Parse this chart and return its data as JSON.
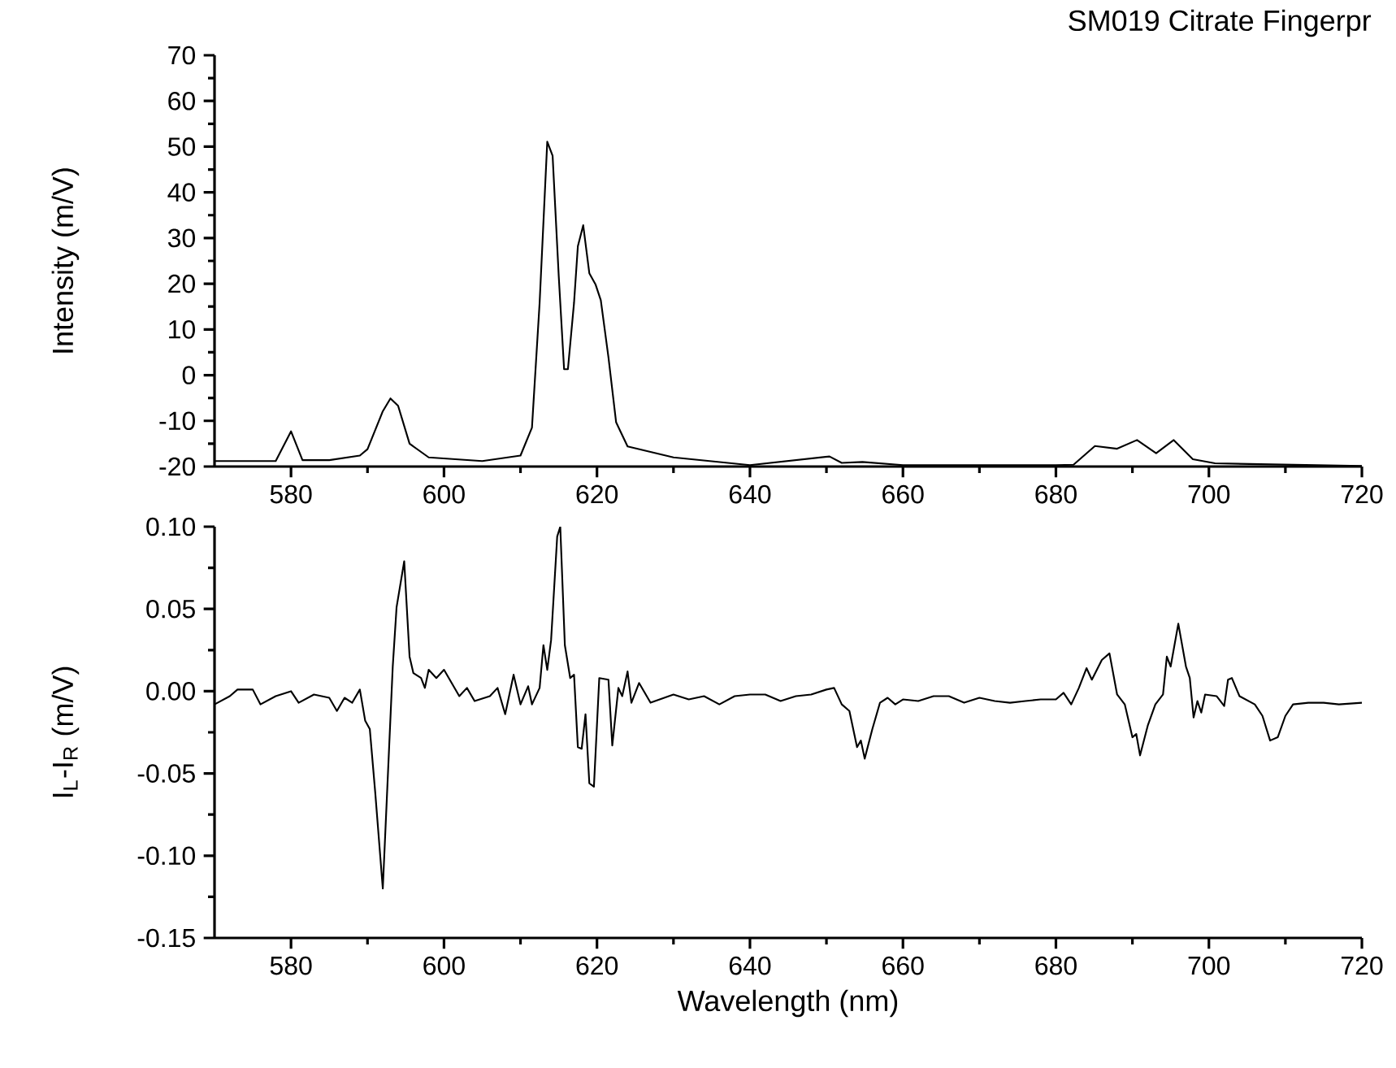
{
  "chart_data": [
    {
      "type": "line",
      "title": "SM019 Citrate Fingerpr",
      "ylabel": "Intensity (m/V)",
      "xlim": [
        570,
        720
      ],
      "xticks": [
        580,
        600,
        620,
        640,
        660,
        680,
        700,
        720
      ],
      "ylim": [
        -20,
        70
      ],
      "yticks": [
        -20,
        -10,
        0,
        10,
        20,
        30,
        40,
        50,
        60,
        70
      ],
      "grid": false,
      "marker": "none",
      "line_style": "solid",
      "series": [
        {
          "color": "#000000",
          "x": [
            570,
            578,
            580,
            581.5,
            585,
            589,
            590,
            592,
            593,
            594,
            595.5,
            598,
            605,
            610,
            611.5,
            612.5,
            613.5,
            614.2,
            615,
            615.7,
            616.2,
            617,
            617.5,
            618.2,
            619,
            619.8,
            620.5,
            621.5,
            622.5,
            624,
            630,
            640,
            650.4,
            652,
            654.7,
            660,
            680,
            682.3,
            685.1,
            688,
            690.6,
            693.1,
            695.4,
            697.9,
            700.8,
            720
          ],
          "values": [
            -18.8,
            -18.8,
            -12.3,
            -18.6,
            -18.6,
            -17.6,
            -16.2,
            -7.9,
            -5.1,
            -6.7,
            -15,
            -18,
            -18.8,
            -17.6,
            -11.5,
            15.8,
            51.1,
            48,
            21.7,
            1.3,
            1.3,
            15.8,
            28.2,
            32.8,
            22.3,
            19.9,
            16.4,
            3.9,
            -10.3,
            -15.6,
            -18,
            -19.7,
            -17.8,
            -19.2,
            -19,
            -19.7,
            -19.7,
            -19.6,
            -15.5,
            -16.1,
            -14.2,
            -17.1,
            -14.2,
            -18.4,
            -19.3,
            -19.9
          ]
        }
      ]
    },
    {
      "type": "line",
      "xlabel": "Wavelength (nm)",
      "ylabel": "I$_{L}$-I$_{R}$ (m/V)",
      "xlim": [
        570,
        720
      ],
      "xticks": [
        580,
        600,
        620,
        640,
        660,
        680,
        700,
        720
      ],
      "ylim": [
        -0.15,
        0.1
      ],
      "yticks": [
        {
          "value": -0.15,
          "label": "-0.15"
        },
        {
          "value": -0.1,
          "label": "-0.10"
        },
        {
          "value": -0.05,
          "label": "-0.05"
        },
        {
          "value": 0,
          "label": "0.00"
        },
        {
          "value": 0.05,
          "label": "0.05"
        },
        {
          "value": 0.1,
          "label": "0.10"
        }
      ],
      "grid": false,
      "marker": "none",
      "line_style": "solid",
      "series": [
        {
          "color": "#000000",
          "x": [
            570,
            572,
            573,
            575,
            576,
            578,
            580,
            581,
            583,
            585,
            586,
            587,
            588,
            589,
            589.7,
            590.3,
            591,
            592,
            593.3,
            593.8,
            594.8,
            595.5,
            596,
            597,
            597.5,
            598,
            599,
            600,
            601,
            602,
            603,
            604,
            606,
            607,
            608,
            609.1,
            610,
            611,
            611.5,
            612.5,
            613,
            613.5,
            614,
            614.8,
            615.2,
            615.8,
            616.5,
            617,
            617.5,
            618,
            618.5,
            619,
            619.6,
            620.3,
            621.5,
            622,
            622.8,
            623.3,
            624,
            624.5,
            625.5,
            627,
            630,
            632,
            634,
            636,
            638,
            640,
            642,
            644,
            646,
            648,
            650,
            651,
            652,
            653,
            654,
            654.5,
            655,
            656,
            657,
            658,
            659,
            660,
            662,
            664,
            666,
            668,
            670,
            672,
            674,
            676,
            678,
            680,
            681,
            682,
            683,
            684,
            684.7,
            686,
            687,
            688,
            689,
            690,
            690.5,
            691,
            692,
            693,
            694,
            694.5,
            695,
            696,
            697,
            697.5,
            698,
            698.5,
            699,
            699.5,
            701,
            702,
            702.5,
            703,
            704,
            706,
            707,
            708,
            709,
            710,
            711,
            713,
            715,
            717,
            720
          ],
          "values": [
            -0.008,
            -0.003,
            0.001,
            0.001,
            -0.008,
            -0.003,
            0,
            -0.007,
            -0.002,
            -0.004,
            -0.012,
            -0.004,
            -0.007,
            0.001,
            -0.018,
            -0.023,
            -0.061,
            -0.12,
            0.015,
            0.051,
            0.079,
            0.021,
            0.011,
            0.008,
            0.002,
            0.013,
            0.008,
            0.013,
            0.005,
            -0.003,
            0.002,
            -0.006,
            -0.003,
            0.002,
            -0.014,
            0.01,
            -0.008,
            0.003,
            -0.008,
            0.002,
            0.028,
            0.013,
            0.031,
            0.094,
            0.1,
            0.028,
            0.008,
            0.01,
            -0.034,
            -0.035,
            -0.014,
            -0.056,
            -0.058,
            0.008,
            0.007,
            -0.033,
            0.002,
            -0.003,
            0.012,
            -0.007,
            0.005,
            -0.007,
            -0.002,
            -0.005,
            -0.003,
            -0.008,
            -0.003,
            -0.002,
            -0.002,
            -0.006,
            -0.003,
            -0.002,
            0.001,
            0.002,
            -0.008,
            -0.012,
            -0.034,
            -0.03,
            -0.041,
            -0.023,
            -0.007,
            -0.004,
            -0.008,
            -0.005,
            -0.006,
            -0.003,
            -0.003,
            -0.007,
            -0.004,
            -0.006,
            -0.007,
            -0.006,
            -0.005,
            -0.005,
            -0.001,
            -0.008,
            0.002,
            0.014,
            0.007,
            0.019,
            0.023,
            -0.002,
            -0.008,
            -0.028,
            -0.026,
            -0.039,
            -0.021,
            -0.008,
            -0.002,
            0.021,
            0.015,
            0.041,
            0.015,
            0.008,
            -0.016,
            -0.006,
            -0.013,
            -0.002,
            -0.003,
            -0.009,
            0.007,
            0.008,
            -0.003,
            -0.008,
            -0.015,
            -0.03,
            -0.028,
            -0.015,
            -0.008,
            -0.007,
            -0.007,
            -0.008,
            -0.007
          ]
        }
      ]
    }
  ]
}
